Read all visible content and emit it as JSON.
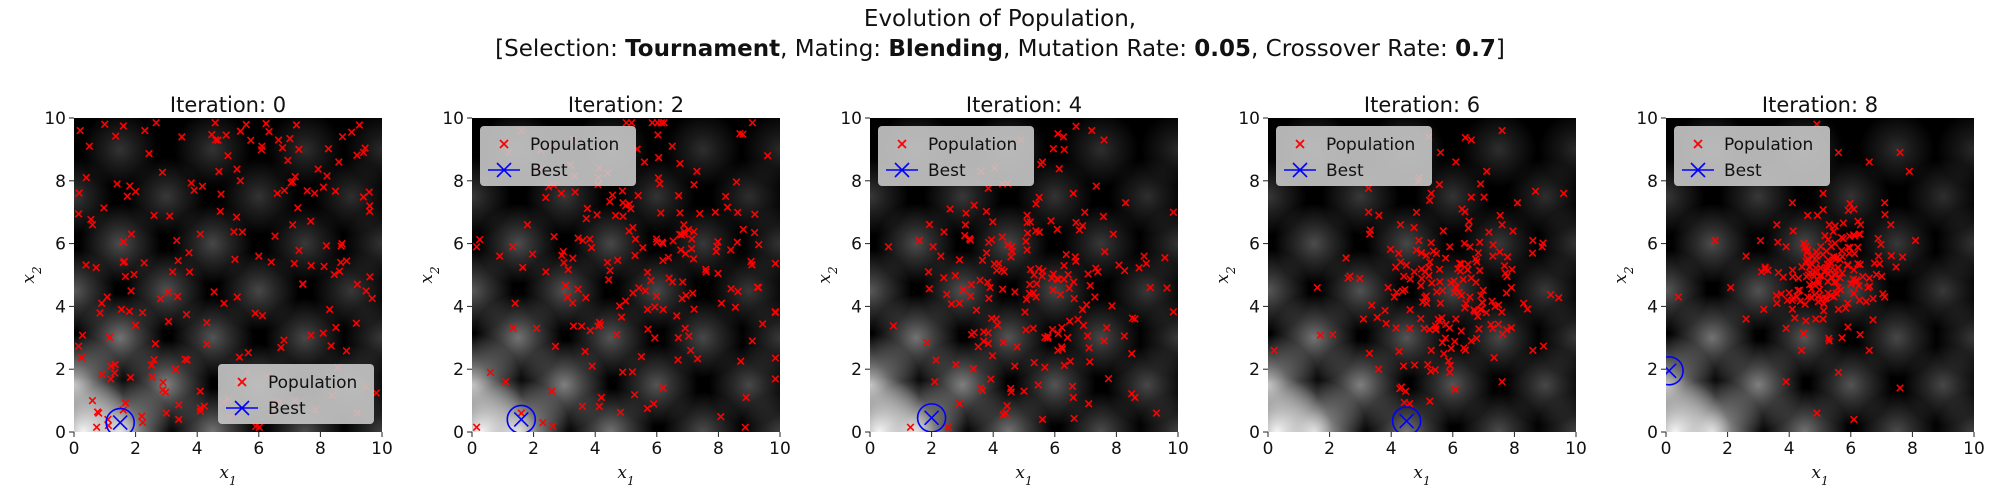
{
  "figure_title": {
    "line1": "Evolution of Population,",
    "line2_parts": [
      {
        "text": "[Selection: ",
        "bold": false
      },
      {
        "text": "Tournament",
        "bold": true
      },
      {
        "text": ", Mating: ",
        "bold": false
      },
      {
        "text": "Blending",
        "bold": true
      },
      {
        "text": ", Mutation Rate: ",
        "bold": false
      },
      {
        "text": "0.05",
        "bold": true
      },
      {
        "text": ", Crossover Rate: ",
        "bold": false
      },
      {
        "text": "0.7",
        "bold": true
      },
      {
        "text": "]",
        "bold": false
      }
    ]
  },
  "colors": {
    "population": "#ff0000",
    "best": "#0000ff",
    "legend_bg": "#c8c8c8",
    "background_dark": "#000000",
    "background_light": "#ffffff"
  },
  "chart_data": [
    {
      "type": "scatter",
      "title": "Iteration: 0",
      "xlabel": "x_1",
      "ylabel": "x_2",
      "xlim": [
        0,
        10
      ],
      "ylim": [
        0,
        10
      ],
      "xticks": [
        0,
        2,
        4,
        6,
        8,
        10
      ],
      "yticks": [
        0,
        2,
        4,
        6,
        8,
        10
      ],
      "grid": false,
      "legend": {
        "location": "lower-right",
        "entries": [
          "Population",
          "Best"
        ]
      },
      "series": [
        {
          "name": "Population",
          "marker": "x",
          "spread": "uniform",
          "center": [
            5,
            5
          ],
          "sigma": [
            2.9,
            2.9
          ],
          "count": 200,
          "x": [
            0.2,
            0.5,
            1.0,
            2.3,
            3.5,
            4.6,
            5.0,
            6.1,
            7.3,
            8.6,
            9.4,
            0.4,
            1.4,
            3.9,
            5.4,
            6.6,
            8.1,
            9.6,
            0.6,
            2.6,
            4.1,
            7.1,
            8.7,
            1.6,
            3.2,
            6.0,
            7.7,
            9.2,
            0.9,
            5.3,
            8.3,
            2.0,
            1.2,
            2.6,
            3.3,
            0.8,
            1.1,
            1.6,
            2.2,
            3.0,
            3.4,
            0.6,
            9.2
          ],
          "y": [
            9.6,
            9.1,
            9.8,
            9.6,
            9.4,
            9.3,
            8.8,
            9.1,
            9.0,
            8.6,
            8.9,
            8.1,
            7.9,
            7.7,
            8.0,
            7.6,
            7.8,
            7.2,
            6.6,
            6.9,
            6.3,
            6.6,
            6.0,
            5.4,
            5.1,
            5.6,
            5.3,
            4.7,
            4.1,
            4.3,
            3.9,
            3.4,
            2.1,
            2.3,
            2.0,
            0.6,
            0.4,
            0.7,
            0.5,
            0.6,
            0.4,
            1.0,
            0.6
          ]
        },
        {
          "name": "Best",
          "marker": "x",
          "x": [
            1.5
          ],
          "y": [
            0.3
          ]
        }
      ]
    },
    {
      "type": "scatter",
      "title": "Iteration: 2",
      "xlabel": "x_1",
      "ylabel": "x_2",
      "xlim": [
        0,
        10
      ],
      "ylim": [
        0,
        10
      ],
      "xticks": [
        0,
        2,
        4,
        6,
        8,
        10
      ],
      "yticks": [
        0,
        2,
        4,
        6,
        8,
        10
      ],
      "grid": false,
      "legend": {
        "location": "top-left",
        "entries": [
          "Population",
          "Best"
        ]
      },
      "series": [
        {
          "name": "Population",
          "marker": "x",
          "spread": "gaussian",
          "center": [
            5.3,
            5.2
          ],
          "sigma": [
            2.3,
            2.2
          ],
          "count": 200,
          "x": [
            1.2,
            1.6,
            3.3,
            4.1,
            5.6,
            6.5,
            7.3,
            8.7,
            9.6,
            2.9,
            4.9,
            6.1,
            7.9,
            1.8,
            3.6,
            5.1,
            6.9,
            8.4,
            0.9,
            2.4,
            4.4,
            6.4,
            7.6,
            9.3,
            1.4,
            3.1,
            5.7,
            8.1,
            2.1,
            4.7,
            6.7,
            3.9,
            5.5,
            7.1,
            1.1,
            2.6,
            4.2,
            6.2,
            8.9,
            9.1,
            1.6,
            2.3,
            0.6
          ],
          "y": [
            8.9,
            9.6,
            9.3,
            8.1,
            8.6,
            9.1,
            8.3,
            9.5,
            8.8,
            7.6,
            7.3,
            7.9,
            7.0,
            6.6,
            6.1,
            6.4,
            6.3,
            5.8,
            5.6,
            5.1,
            5.4,
            4.9,
            5.1,
            4.6,
            4.1,
            4.3,
            3.9,
            4.1,
            3.3,
            3.1,
            3.0,
            2.1,
            2.4,
            2.6,
            1.6,
            1.3,
            1.1,
            1.4,
            1.1,
            2.9,
            0.6,
            0.3,
            1.9
          ]
        },
        {
          "name": "Best",
          "marker": "x",
          "x": [
            1.6
          ],
          "y": [
            0.4
          ]
        }
      ]
    },
    {
      "type": "scatter",
      "title": "Iteration: 4",
      "xlabel": "x_1",
      "ylabel": "x_2",
      "xlim": [
        0,
        10
      ],
      "ylim": [
        0,
        10
      ],
      "xticks": [
        0,
        2,
        4,
        6,
        8,
        10
      ],
      "yticks": [
        0,
        2,
        4,
        6,
        8,
        10
      ],
      "grid": false,
      "legend": {
        "location": "top-left",
        "entries": [
          "Population",
          "Best"
        ]
      },
      "series": [
        {
          "name": "Population",
          "marker": "x",
          "spread": "gaussian",
          "center": [
            5.4,
            4.8
          ],
          "sigma": [
            1.9,
            2.0
          ],
          "count": 200,
          "x": [
            4.9,
            6.1,
            7.2,
            7.6,
            5.6,
            3.6,
            4.3,
            6.6,
            8.3,
            2.6,
            3.1,
            5.1,
            7.9,
            1.6,
            2.3,
            4.6,
            6.3,
            8.9,
            0.6,
            1.9,
            3.9,
            5.9,
            7.3,
            9.1,
            2.9,
            4.1,
            6.9,
            8.6,
            3.3,
            5.3,
            7.6,
            4.7,
            6.1,
            2.1,
            5.0,
            6.6,
            3.6,
            7.1,
            8.6,
            9.3,
            2.9,
            5.6,
            4.4
          ],
          "y": [
            9.3,
            9.5,
            9.6,
            9.3,
            8.6,
            8.3,
            7.9,
            7.6,
            7.3,
            7.1,
            6.6,
            6.9,
            6.3,
            6.1,
            5.6,
            5.9,
            5.3,
            5.6,
            5.9,
            5.1,
            4.6,
            4.9,
            4.3,
            4.6,
            4.1,
            3.6,
            3.9,
            3.6,
            3.1,
            3.3,
            2.9,
            2.1,
            2.6,
            1.6,
            1.3,
            1.1,
            1.4,
            0.9,
            1.1,
            0.6,
            0.9,
            0.4,
            0.6
          ]
        },
        {
          "name": "Best",
          "marker": "x",
          "x": [
            2.0
          ],
          "y": [
            0.45
          ]
        }
      ]
    },
    {
      "type": "scatter",
      "title": "Iteration: 6",
      "xlabel": "x_1",
      "ylabel": "x_2",
      "xlim": [
        0,
        10
      ],
      "ylim": [
        0,
        10
      ],
      "xticks": [
        0,
        2,
        4,
        6,
        8,
        10
      ],
      "yticks": [
        0,
        2,
        4,
        6,
        8,
        10
      ],
      "grid": false,
      "legend": {
        "location": "top-left",
        "entries": [
          "Population",
          "Best"
        ]
      },
      "series": [
        {
          "name": "Population",
          "marker": "x",
          "spread": "gaussian",
          "center": [
            5.8,
            4.7
          ],
          "sigma": [
            1.5,
            1.6
          ],
          "count": 200,
          "x": [
            6.6,
            7.6,
            5.6,
            6.1,
            7.1,
            4.9,
            5.3,
            6.9,
            8.1,
            3.6,
            4.3,
            6.3,
            7.6,
            8.6,
            3.3,
            4.9,
            5.9,
            7.3,
            8.9,
            9.6,
            2.6,
            3.9,
            5.1,
            6.6,
            7.9,
            4.1,
            5.6,
            6.9,
            8.3,
            3.1,
            4.6,
            6.1,
            7.3,
            2.1,
            5.3,
            6.6,
            8.6,
            4.4,
            5.9,
            7.6,
            0.2,
            1.6,
            4.6
          ],
          "y": [
            9.3,
            9.6,
            8.9,
            8.6,
            8.3,
            8.1,
            7.6,
            7.9,
            7.3,
            6.9,
            6.6,
            7.1,
            6.6,
            6.1,
            6.3,
            6.1,
            5.9,
            5.6,
            5.9,
            7.6,
            4.9,
            4.6,
            5.1,
            4.9,
            4.6,
            4.3,
            4.1,
            3.9,
            4.1,
            3.6,
            3.3,
            3.6,
            3.3,
            3.1,
            2.6,
            2.9,
            2.6,
            2.1,
            1.9,
            1.6,
            2.6,
            4.6,
            0.9
          ]
        },
        {
          "name": "Best",
          "marker": "x",
          "x": [
            4.5
          ],
          "y": [
            0.35
          ]
        }
      ]
    },
    {
      "type": "scatter",
      "title": "Iteration: 8",
      "xlabel": "x_1",
      "ylabel": "x_2",
      "xlim": [
        0,
        10
      ],
      "ylim": [
        0,
        10
      ],
      "xticks": [
        0,
        2,
        4,
        6,
        8,
        10
      ],
      "yticks": [
        0,
        2,
        4,
        6,
        8,
        10
      ],
      "grid": false,
      "legend": {
        "location": "top-left",
        "entries": [
          "Population",
          "Best"
        ]
      },
      "series": [
        {
          "name": "Population",
          "marker": "x",
          "spread": "gaussian",
          "center": [
            5.2,
            5.0
          ],
          "sigma": [
            0.9,
            0.9
          ],
          "count": 200,
          "x": [
            4.9,
            5.6,
            6.6,
            7.6,
            7.9,
            4.1,
            5.1,
            6.1,
            7.1,
            3.6,
            4.6,
            5.3,
            6.3,
            7.3,
            8.1,
            2.6,
            3.9,
            4.9,
            5.9,
            6.9,
            1.6,
            3.1,
            4.3,
            5.6,
            6.6,
            2.1,
            3.6,
            4.6,
            5.9,
            7.1,
            0.4,
            2.6,
            3.9,
            5.1,
            6.3,
            4.4,
            5.3,
            6.6,
            3.9,
            5.6,
            7.6,
            4.9,
            6.1
          ],
          "y": [
            9.8,
            8.9,
            8.6,
            8.9,
            8.3,
            7.3,
            7.6,
            7.1,
            7.3,
            6.6,
            6.9,
            6.6,
            6.3,
            6.6,
            6.1,
            5.6,
            5.9,
            5.6,
            5.3,
            5.6,
            6.1,
            5.1,
            4.9,
            4.6,
            4.9,
            4.6,
            4.1,
            4.3,
            4.1,
            4.3,
            4.3,
            3.6,
            3.3,
            3.6,
            3.1,
            2.6,
            2.9,
            2.6,
            1.6,
            1.9,
            1.4,
            0.6,
            0.4
          ]
        },
        {
          "name": "Best",
          "marker": "x",
          "x": [
            0.1
          ],
          "y": [
            1.95
          ]
        }
      ]
    }
  ]
}
